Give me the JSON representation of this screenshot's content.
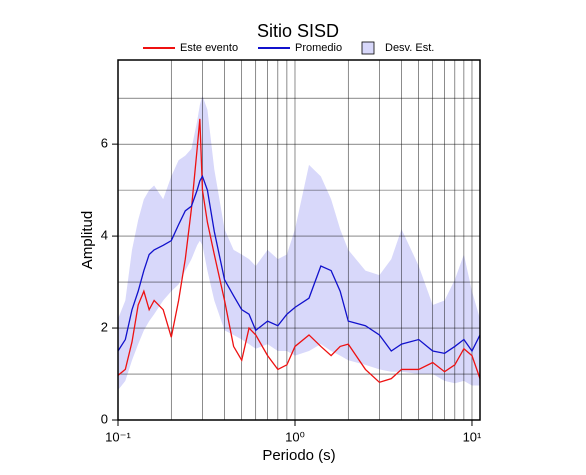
{
  "chart_data": {
    "type": "line",
    "title": "Sitio SISD",
    "xlabel": "Periodo (s)",
    "ylabel": "Amplitud",
    "xscale": "log",
    "xlim": [
      0.1,
      11.1
    ],
    "ylim": [
      0,
      7.83
    ],
    "xticks": [
      {
        "value": 0.1,
        "label": "10⁻¹"
      },
      {
        "value": 1,
        "label": "10⁰"
      },
      {
        "value": 10,
        "label": "10¹"
      }
    ],
    "yticks": [
      0,
      2,
      4,
      6
    ],
    "xgrid": [
      0.2,
      0.3,
      0.4,
      0.5,
      0.6,
      0.7,
      0.8,
      0.9,
      1,
      2,
      3,
      4,
      5,
      6,
      7,
      8,
      9,
      10
    ],
    "ygrid": [
      1,
      2,
      3,
      4,
      5,
      6,
      7
    ],
    "x": [
      0.1,
      0.11,
      0.12,
      0.13,
      0.14,
      0.15,
      0.16,
      0.18,
      0.2,
      0.22,
      0.24,
      0.26,
      0.28,
      0.29,
      0.3,
      0.32,
      0.35,
      0.4,
      0.45,
      0.5,
      0.55,
      0.6,
      0.7,
      0.8,
      0.9,
      1.0,
      1.2,
      1.4,
      1.6,
      1.8,
      2.0,
      2.5,
      3.0,
      3.5,
      4,
      5,
      6,
      7,
      8,
      9,
      10,
      11.1
    ],
    "band": {
      "name": "Desv. Est.",
      "color": "#d8d8fa",
      "lower": [
        0.65,
        0.85,
        1.3,
        1.65,
        1.95,
        2.15,
        2.3,
        2.6,
        2.8,
        2.95,
        3.25,
        3.5,
        3.8,
        3.9,
        3.8,
        3.25,
        2.6,
        1.95,
        1.85,
        1.75,
        1.65,
        1.55,
        1.65,
        1.5,
        1.5,
        1.4,
        1.5,
        1.65,
        1.5,
        1.4,
        1.3,
        1.2,
        1.1,
        1.05,
        1.05,
        1.0,
        1.0,
        0.85,
        0.8,
        0.85,
        0.75,
        0.75
      ],
      "upper": [
        2.2,
        2.6,
        3.7,
        4.35,
        4.8,
        5.0,
        5.1,
        4.8,
        5.3,
        5.65,
        5.75,
        5.9,
        6.5,
        6.85,
        7.05,
        6.75,
        5.45,
        4.15,
        3.7,
        3.6,
        3.5,
        3.35,
        3.7,
        3.5,
        3.6,
        4.15,
        5.55,
        5.3,
        4.8,
        4.15,
        3.7,
        3.25,
        3.15,
        3.5,
        4.15,
        3.35,
        2.5,
        2.6,
        3.05,
        3.6,
        2.8,
        2.2
      ]
    },
    "series": [
      {
        "name": "Este evento",
        "color": "#ee1111",
        "values": [
          0.97,
          1.1,
          1.7,
          2.5,
          2.8,
          2.4,
          2.6,
          2.4,
          1.8,
          2.6,
          3.5,
          4.6,
          5.9,
          6.55,
          5.0,
          4.3,
          3.6,
          2.6,
          1.6,
          1.3,
          2.0,
          1.85,
          1.4,
          1.1,
          1.2,
          1.6,
          1.85,
          1.6,
          1.4,
          1.6,
          1.65,
          1.1,
          0.82,
          0.9,
          1.1,
          1.1,
          1.25,
          1.05,
          1.2,
          1.55,
          1.4,
          0.9
        ]
      },
      {
        "name": "Promedio",
        "color": "#1111cc",
        "values": [
          1.5,
          1.75,
          2.4,
          2.8,
          3.25,
          3.6,
          3.7,
          3.8,
          3.9,
          4.25,
          4.55,
          4.65,
          5.0,
          5.2,
          5.3,
          5.0,
          4.1,
          3.05,
          2.7,
          2.4,
          2.3,
          1.95,
          2.15,
          2.05,
          2.3,
          2.45,
          2.65,
          3.35,
          3.25,
          2.8,
          2.15,
          2.05,
          1.85,
          1.5,
          1.65,
          1.75,
          1.5,
          1.45,
          1.6,
          1.75,
          1.5,
          1.85
        ]
      }
    ]
  }
}
